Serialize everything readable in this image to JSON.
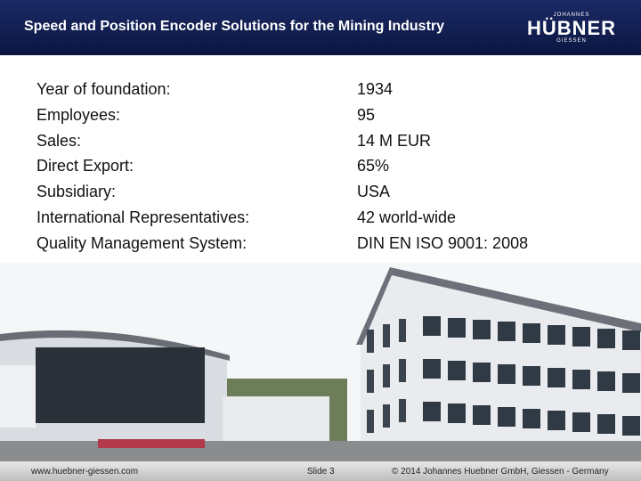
{
  "header": {
    "title": "Speed and Position Encoder Solutions for the Mining Industry",
    "logo": {
      "top": "JOHANNES",
      "main": "HÜBNER",
      "bottom": "GIESSEN"
    }
  },
  "facts": [
    {
      "label": "Year of foundation:",
      "value": "1934"
    },
    {
      "label": "Employees:",
      "value": "95"
    },
    {
      "label": "Sales:",
      "value": "14 M EUR"
    },
    {
      "label": "Direct Export:",
      "value": "65%"
    },
    {
      "label": "Subsidiary:",
      "value": "USA"
    },
    {
      "label": "International Representatives:",
      "value": "42 world-wide"
    },
    {
      "label": "Quality Management System:",
      "value": "DIN EN ISO 9001: 2008"
    }
  ],
  "footer": {
    "website": "www.huebner-giessen.com",
    "slide": "Slide 3",
    "copyright": "© 2014 Johannes Huebner GmbH, Giessen - Germany"
  }
}
